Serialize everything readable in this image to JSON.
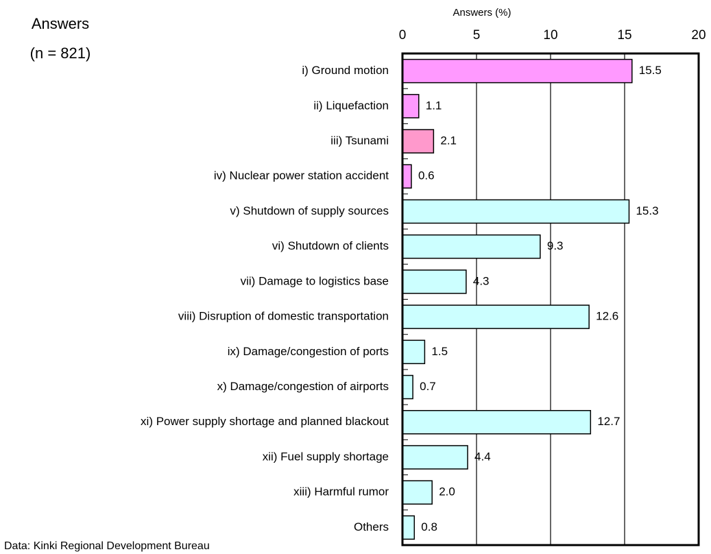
{
  "chart_data": {
    "type": "bar",
    "orientation": "horizontal",
    "title": "Answers",
    "subtitle": "(n = 821)",
    "x_label": "Answers (%)",
    "source": "Data: Kinki Regional Development Bureau",
    "categories": [
      "i) Ground motion",
      "ii) Liquefaction",
      "iii) Tsunami",
      "iv) Nuclear power station accident",
      "v) Shutdown of supply sources",
      "vi) Shutdown of clients",
      "vii) Damage to logistics base",
      "viii) Disruption of domestic transportation",
      "ix) Damage/congestion of ports",
      "x) Damage/congestion of airports",
      "xi) Power supply shortage and planned blackout",
      "xii) Fuel supply shortage",
      "xiii) Harmful rumor",
      "Others"
    ],
    "values": [
      15.5,
      1.1,
      2.1,
      0.6,
      15.3,
      9.3,
      4.3,
      12.6,
      1.5,
      0.7,
      12.7,
      4.4,
      2.0,
      0.8
    ],
    "value_labels": [
      "15.5",
      "1.1",
      "2.1",
      "0.6",
      "15.3",
      "9.3",
      "4.3",
      "12.6",
      "1.5",
      "0.7",
      "12.7",
      "4.4",
      "2.0",
      "0.8"
    ],
    "colors": [
      "#ff99ff",
      "#ff99ff",
      "#ff99cc",
      "#ff99ff",
      "#ccffff",
      "#ccffff",
      "#ccffff",
      "#ccffff",
      "#ccffff",
      "#ccffff",
      "#ccffff",
      "#ccffff",
      "#ccffff",
      "#ccffff"
    ],
    "xlim": [
      0,
      20
    ],
    "xticks": [
      0,
      5,
      10,
      15,
      20
    ],
    "grid": true
  }
}
